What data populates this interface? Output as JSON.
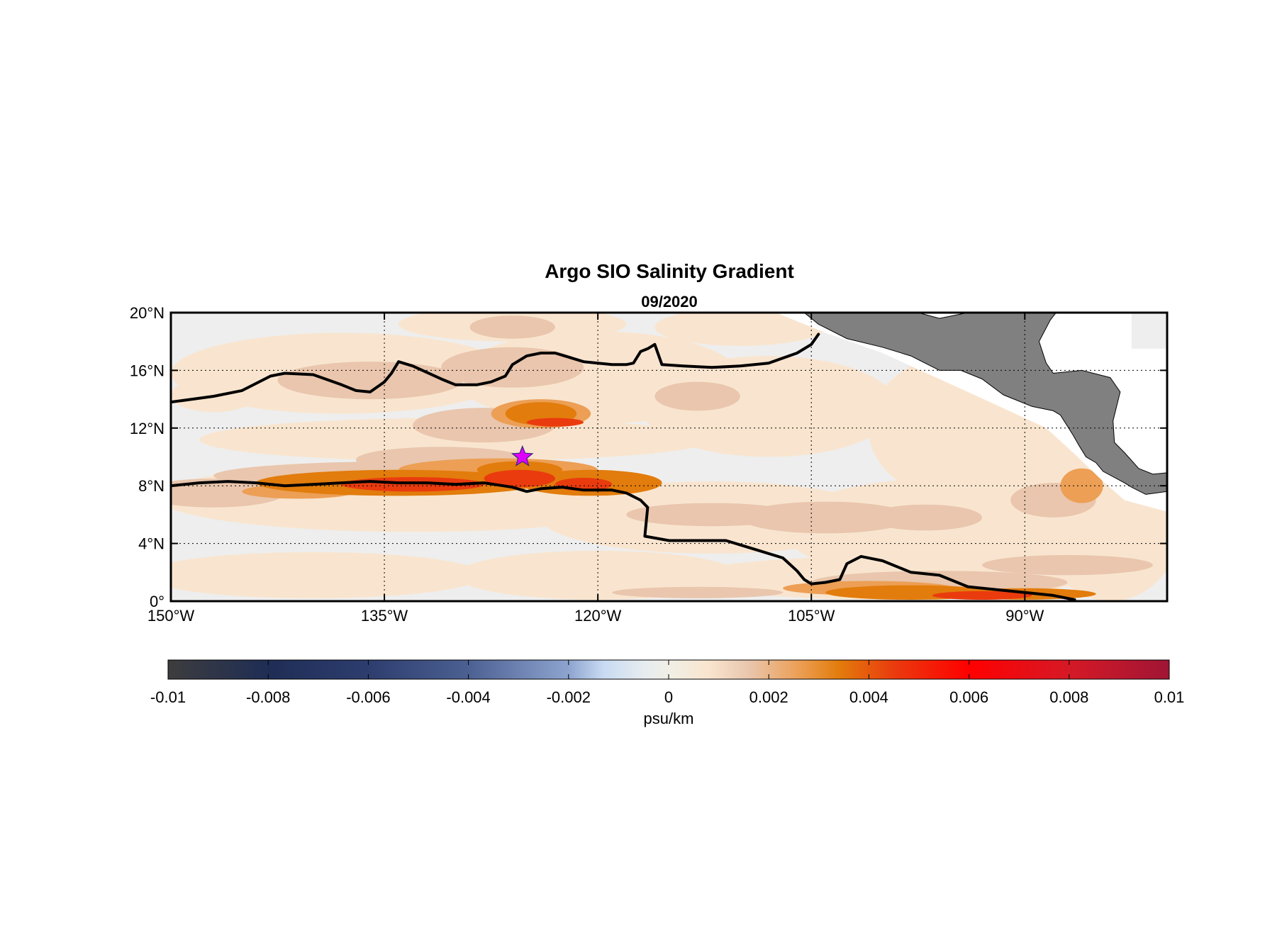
{
  "title": "Argo SIO Salinity Gradient",
  "subtitle": "09/2020",
  "map": {
    "lon_range": [
      -150,
      -80
    ],
    "lat_range": [
      0,
      20
    ],
    "lon_ticks": [
      {
        "value": -150,
        "label": "150°W"
      },
      {
        "value": -135,
        "label": "135°W"
      },
      {
        "value": -120,
        "label": "120°W"
      },
      {
        "value": -105,
        "label": "105°W"
      },
      {
        "value": -90,
        "label": "90°W"
      }
    ],
    "lat_ticks": [
      {
        "value": 0,
        "label": "0°"
      },
      {
        "value": 4,
        "label": "4°N"
      },
      {
        "value": 8,
        "label": "8°N"
      },
      {
        "value": 12,
        "label": "12°N"
      },
      {
        "value": 16,
        "label": "16°N"
      },
      {
        "value": 20,
        "label": "20°N"
      }
    ],
    "grid": "dotted",
    "land_color": "#808080",
    "marker": {
      "symbol": "star",
      "lon": -125.3,
      "lat": 10.0,
      "color": "#e000ff"
    },
    "contour_lines": [
      {
        "name": "northern",
        "points": [
          [
            -150,
            13.8
          ],
          [
            -147,
            14.2
          ],
          [
            -145,
            14.6
          ],
          [
            -143,
            15.6
          ],
          [
            -142,
            15.8
          ],
          [
            -140,
            15.7
          ],
          [
            -138,
            15.0
          ],
          [
            -137,
            14.6
          ],
          [
            -136,
            14.5
          ],
          [
            -135,
            15.2
          ],
          [
            -134.5,
            15.8
          ],
          [
            -134,
            16.6
          ],
          [
            -133,
            16.3
          ],
          [
            -131,
            15.4
          ],
          [
            -130,
            15.0
          ],
          [
            -128.5,
            15.0
          ],
          [
            -127.5,
            15.2
          ],
          [
            -126.5,
            15.6
          ],
          [
            -126,
            16.4
          ],
          [
            -125,
            17.0
          ],
          [
            -124,
            17.2
          ],
          [
            -123,
            17.2
          ],
          [
            -122,
            16.9
          ],
          [
            -121,
            16.6
          ],
          [
            -119,
            16.4
          ],
          [
            -118,
            16.4
          ],
          [
            -117.5,
            16.5
          ],
          [
            -117,
            17.3
          ],
          [
            -116.5,
            17.5
          ],
          [
            -116,
            17.8
          ],
          [
            -115.5,
            16.4
          ],
          [
            -114,
            16.3
          ],
          [
            -112,
            16.2
          ],
          [
            -110,
            16.3
          ],
          [
            -108,
            16.5
          ],
          [
            -106,
            17.2
          ],
          [
            -105,
            17.8
          ],
          [
            -104.5,
            18.5
          ]
        ]
      },
      {
        "name": "front",
        "points": [
          [
            -150,
            8.0
          ],
          [
            -148,
            8.2
          ],
          [
            -146,
            8.3
          ],
          [
            -144,
            8.2
          ],
          [
            -142,
            8.0
          ],
          [
            -140,
            8.1
          ],
          [
            -138,
            8.2
          ],
          [
            -136,
            8.3
          ],
          [
            -134,
            8.2
          ],
          [
            -132,
            8.2
          ],
          [
            -130,
            8.1
          ],
          [
            -128,
            8.2
          ],
          [
            -126,
            7.9
          ],
          [
            -125,
            7.6
          ],
          [
            -124,
            7.8
          ],
          [
            -122.5,
            7.9
          ],
          [
            -121,
            7.7
          ],
          [
            -119,
            7.7
          ],
          [
            -118,
            7.5
          ],
          [
            -117,
            7.0
          ],
          [
            -116.5,
            6.5
          ],
          [
            -116.7,
            4.5
          ],
          [
            -115,
            4.2
          ],
          [
            -113,
            4.2
          ],
          [
            -111,
            4.2
          ],
          [
            -109,
            3.6
          ],
          [
            -107,
            3.0
          ],
          [
            -106,
            2.1
          ],
          [
            -105.5,
            1.5
          ],
          [
            -105,
            1.2
          ],
          [
            -104,
            1.3
          ],
          [
            -103,
            1.5
          ],
          [
            -102.5,
            2.6
          ],
          [
            -101.5,
            3.1
          ],
          [
            -100,
            2.8
          ],
          [
            -98,
            2.0
          ],
          [
            -96,
            1.8
          ],
          [
            -94,
            1.0
          ],
          [
            -92,
            0.8
          ],
          [
            -90,
            0.6
          ],
          [
            -88,
            0.4
          ],
          [
            -86.5,
            0.1
          ]
        ]
      }
    ],
    "land_shapes": [
      {
        "name": "central-america",
        "points": [
          [
            -105.5,
            20
          ],
          [
            -104.5,
            19.2
          ],
          [
            -102.5,
            18.2
          ],
          [
            -100,
            17.6
          ],
          [
            -98,
            17.0
          ],
          [
            -96,
            16.0
          ],
          [
            -94.5,
            16.0
          ],
          [
            -93,
            15.4
          ],
          [
            -91.5,
            14.3
          ],
          [
            -90.5,
            13.9
          ],
          [
            -89.5,
            13.5
          ],
          [
            -88,
            13.2
          ],
          [
            -87.5,
            12.9
          ],
          [
            -86.6,
            11.5
          ],
          [
            -86.2,
            10.8
          ],
          [
            -85.7,
            10.0
          ],
          [
            -85,
            9.6
          ],
          [
            -84.5,
            9.0
          ],
          [
            -83,
            8.2
          ],
          [
            -82.5,
            7.9
          ],
          [
            -81.5,
            7.4
          ],
          [
            -80,
            7.6
          ],
          [
            -80,
            8.9
          ],
          [
            -81,
            8.8
          ],
          [
            -82,
            9.2
          ],
          [
            -83,
            10.3
          ],
          [
            -83.7,
            11.0
          ],
          [
            -83.8,
            12.5
          ],
          [
            -83.3,
            14.5
          ],
          [
            -84,
            15.5
          ],
          [
            -86,
            16.0
          ],
          [
            -88,
            15.8
          ],
          [
            -88.5,
            16.5
          ],
          [
            -89.0,
            18.0
          ],
          [
            -88.2,
            19.5
          ],
          [
            -87.8,
            20
          ],
          [
            -94,
            20
          ],
          [
            -96,
            19.6
          ],
          [
            -97.5,
            20
          ]
        ]
      }
    ]
  },
  "chart_data": {
    "type": "heatmap",
    "title": "Argo SIO Salinity Gradient",
    "subtitle": "09/2020",
    "xlim": [
      -150,
      -80
    ],
    "ylim": [
      0,
      20
    ],
    "units": "psu/km",
    "description_regions": [
      {
        "region": "near-zero background",
        "value": 0.0
      },
      {
        "region": "broad low positive band",
        "value": 0.001
      },
      {
        "region": "band 7-9°N 144°W-116°W",
        "value": 0.0035
      },
      {
        "region": "core 7.6-8.6°N 136°W-121°W",
        "value": 0.0045
      },
      {
        "region": "band 12-14°N 126°W-121°W",
        "value": 0.0035
      },
      {
        "region": "band 0-1°N 100°W-83°W",
        "value": 0.004
      },
      {
        "region": "core 0-0.8°N 95°W-88°W",
        "value": 0.0045
      }
    ]
  },
  "colorbar": {
    "label": "psu/km",
    "range": [
      -0.01,
      0.01
    ],
    "ticks": [
      {
        "value": -0.01,
        "label": "-0.01"
      },
      {
        "value": -0.008,
        "label": "-0.008"
      },
      {
        "value": -0.006,
        "label": "-0.006"
      },
      {
        "value": -0.004,
        "label": "-0.004"
      },
      {
        "value": -0.002,
        "label": "-0.002"
      },
      {
        "value": 0,
        "label": "0"
      },
      {
        "value": 0.002,
        "label": "0.002"
      },
      {
        "value": 0.004,
        "label": "0.004"
      },
      {
        "value": 0.006,
        "label": "0.006"
      },
      {
        "value": 0.008,
        "label": "0.008"
      },
      {
        "value": 0.01,
        "label": "0.01"
      }
    ],
    "stops": [
      {
        "value": -0.01,
        "color": "#3d3d3d"
      },
      {
        "value": -0.008,
        "color": "#1f2d55"
      },
      {
        "value": -0.006,
        "color": "#2d3d6e"
      },
      {
        "value": -0.004,
        "color": "#4c6092"
      },
      {
        "value": -0.002,
        "color": "#8ea4cf"
      },
      {
        "value": -0.0013,
        "color": "#c8daf2"
      },
      {
        "value": -0.0005,
        "color": "#e6ecef"
      },
      {
        "value": 0,
        "color": "#f1efe6"
      },
      {
        "value": 0.0008,
        "color": "#f9e5cf"
      },
      {
        "value": 0.0016,
        "color": "#e9c6ad"
      },
      {
        "value": 0.0026,
        "color": "#ec9f55"
      },
      {
        "value": 0.0034,
        "color": "#e27c0c"
      },
      {
        "value": 0.0045,
        "color": "#ea3b0e"
      },
      {
        "value": 0.006,
        "color": "#ff0000"
      },
      {
        "value": 0.008,
        "color": "#d51926"
      },
      {
        "value": 0.01,
        "color": "#a01535"
      }
    ]
  }
}
